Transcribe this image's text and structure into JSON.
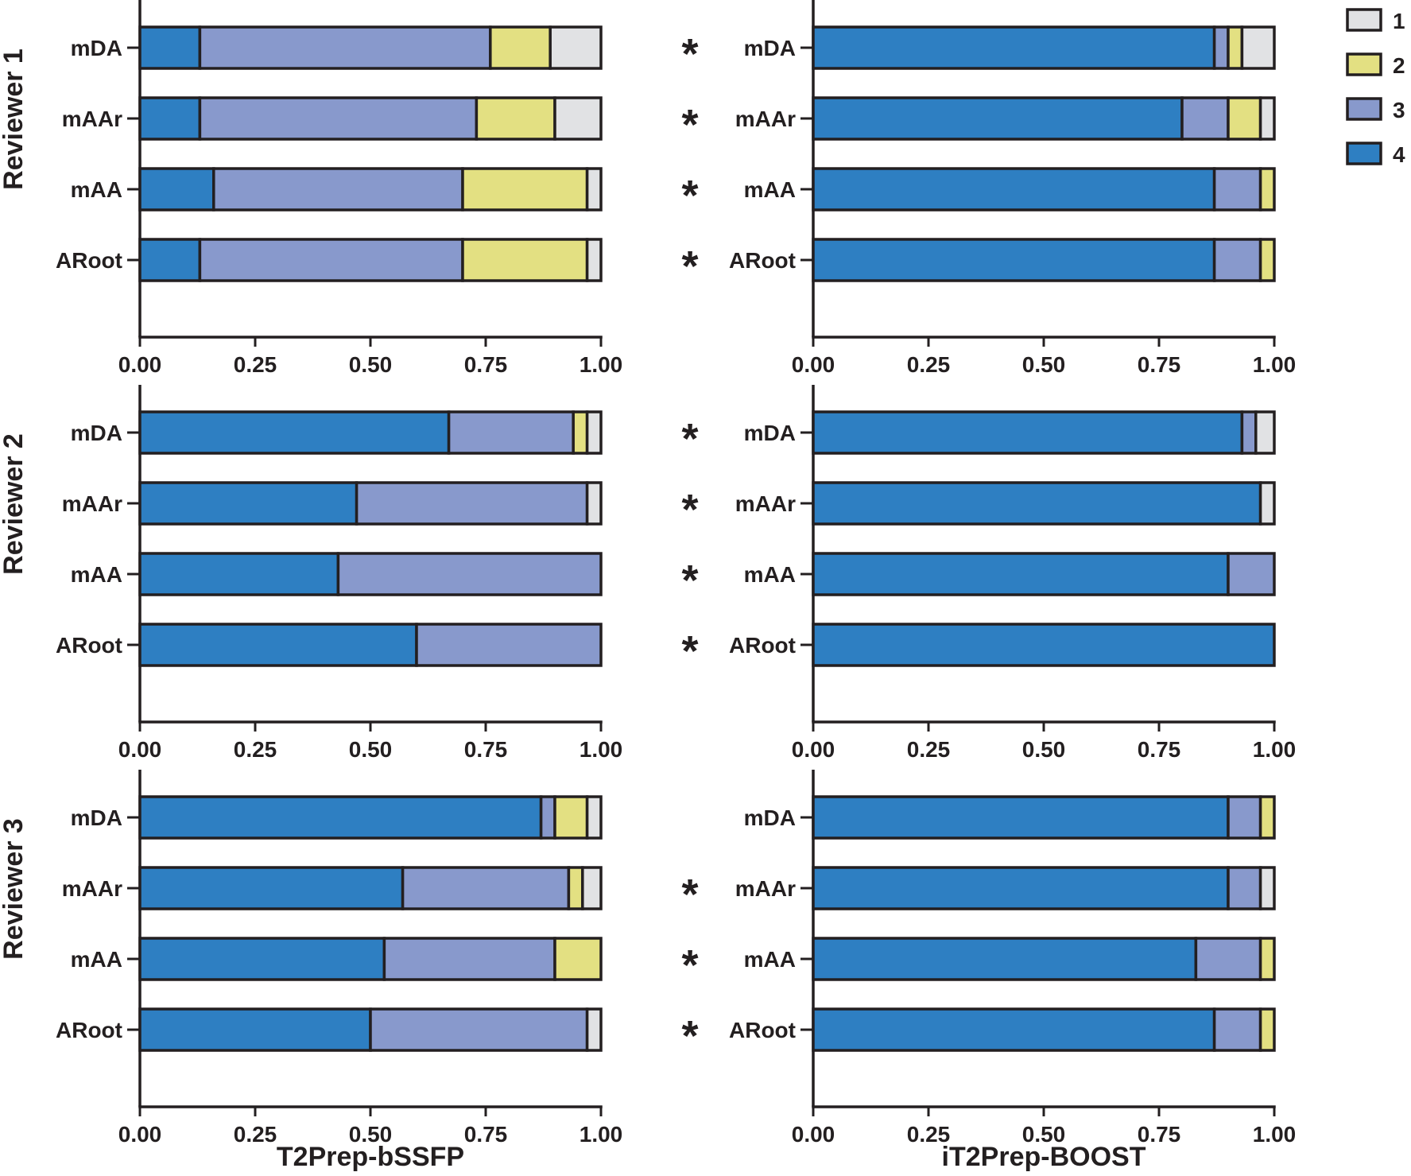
{
  "chart_data": {
    "type": "bar",
    "stacked": true,
    "orientation": "horizontal",
    "categories": [
      "mDA",
      "mAAr",
      "mAA",
      "ARoot"
    ],
    "score_levels": [
      "1",
      "2",
      "3",
      "4"
    ],
    "colors": {
      "1": "#e1e2e4",
      "2": "#e3e082",
      "3": "#8899cc",
      "4": "#2e7fc2"
    },
    "xlim": [
      0,
      1
    ],
    "xticks": [
      "0.00",
      "0.25",
      "0.50",
      "0.75",
      "1.00"
    ],
    "column_labels": [
      "T2Prep-bSSFP",
      "iT2Prep-BOOST"
    ],
    "row_labels": [
      "Reviewer 1",
      "Reviewer 2",
      "Reviewer 3"
    ],
    "significance_marker": "*",
    "legend": {
      "position": "top-right",
      "entries": [
        "1",
        "2",
        "3",
        "4"
      ]
    },
    "panels": [
      {
        "reviewer": "Reviewer 1",
        "method": "T2Prep-bSSFP",
        "bars": [
          {
            "category": "mDA",
            "fractions": {
              "4": 0.13,
              "3": 0.63,
              "2": 0.13,
              "1": 0.11
            },
            "significant": false
          },
          {
            "category": "mAAr",
            "fractions": {
              "4": 0.13,
              "3": 0.6,
              "2": 0.17,
              "1": 0.1
            },
            "significant": false
          },
          {
            "category": "mAA",
            "fractions": {
              "4": 0.16,
              "3": 0.54,
              "2": 0.27,
              "1": 0.03
            },
            "significant": false
          },
          {
            "category": "ARoot",
            "fractions": {
              "4": 0.13,
              "3": 0.57,
              "2": 0.27,
              "1": 0.03
            },
            "significant": false
          }
        ]
      },
      {
        "reviewer": "Reviewer 1",
        "method": "iT2Prep-BOOST",
        "bars": [
          {
            "category": "mDA",
            "fractions": {
              "4": 0.87,
              "3": 0.03,
              "2": 0.03,
              "1": 0.07
            },
            "significant": true
          },
          {
            "category": "mAAr",
            "fractions": {
              "4": 0.8,
              "3": 0.1,
              "2": 0.07,
              "1": 0.03
            },
            "significant": true
          },
          {
            "category": "mAA",
            "fractions": {
              "4": 0.87,
              "3": 0.1,
              "2": 0.03,
              "1": 0.0
            },
            "significant": true
          },
          {
            "category": "ARoot",
            "fractions": {
              "4": 0.87,
              "3": 0.1,
              "2": 0.03,
              "1": 0.0
            },
            "significant": true
          }
        ]
      },
      {
        "reviewer": "Reviewer 2",
        "method": "T2Prep-bSSFP",
        "bars": [
          {
            "category": "mDA",
            "fractions": {
              "4": 0.67,
              "3": 0.27,
              "2": 0.03,
              "1": 0.03
            },
            "significant": false
          },
          {
            "category": "mAAr",
            "fractions": {
              "4": 0.47,
              "3": 0.5,
              "2": 0.0,
              "1": 0.03
            },
            "significant": false
          },
          {
            "category": "mAA",
            "fractions": {
              "4": 0.43,
              "3": 0.57,
              "2": 0.0,
              "1": 0.0
            },
            "significant": false
          },
          {
            "category": "ARoot",
            "fractions": {
              "4": 0.6,
              "3": 0.4,
              "2": 0.0,
              "1": 0.0
            },
            "significant": false
          }
        ]
      },
      {
        "reviewer": "Reviewer 2",
        "method": "iT2Prep-BOOST",
        "bars": [
          {
            "category": "mDA",
            "fractions": {
              "4": 0.93,
              "3": 0.03,
              "2": 0.0,
              "1": 0.04
            },
            "significant": true
          },
          {
            "category": "mAAr",
            "fractions": {
              "4": 0.97,
              "3": 0.0,
              "2": 0.0,
              "1": 0.03
            },
            "significant": true
          },
          {
            "category": "mAA",
            "fractions": {
              "4": 0.9,
              "3": 0.1,
              "2": 0.0,
              "1": 0.0
            },
            "significant": true
          },
          {
            "category": "ARoot",
            "fractions": {
              "4": 1.0,
              "3": 0.0,
              "2": 0.0,
              "1": 0.0
            },
            "significant": true
          }
        ]
      },
      {
        "reviewer": "Reviewer 3",
        "method": "T2Prep-bSSFP",
        "bars": [
          {
            "category": "mDA",
            "fractions": {
              "4": 0.87,
              "3": 0.03,
              "2": 0.07,
              "1": 0.03
            },
            "significant": false
          },
          {
            "category": "mAAr",
            "fractions": {
              "4": 0.57,
              "3": 0.36,
              "2": 0.03,
              "1": 0.04
            },
            "significant": false
          },
          {
            "category": "mAA",
            "fractions": {
              "4": 0.53,
              "3": 0.37,
              "2": 0.1,
              "1": 0.0
            },
            "significant": false
          },
          {
            "category": "ARoot",
            "fractions": {
              "4": 0.5,
              "3": 0.47,
              "2": 0.0,
              "1": 0.03
            },
            "significant": false
          }
        ]
      },
      {
        "reviewer": "Reviewer 3",
        "method": "iT2Prep-BOOST",
        "bars": [
          {
            "category": "mDA",
            "fractions": {
              "4": 0.9,
              "3": 0.07,
              "2": 0.03,
              "1": 0.0
            },
            "significant": false
          },
          {
            "category": "mAAr",
            "fractions": {
              "4": 0.9,
              "3": 0.07,
              "2": 0.0,
              "1": 0.03
            },
            "significant": true
          },
          {
            "category": "mAA",
            "fractions": {
              "4": 0.83,
              "3": 0.14,
              "2": 0.03,
              "1": 0.0
            },
            "significant": true
          },
          {
            "category": "ARoot",
            "fractions": {
              "4": 0.87,
              "3": 0.1,
              "2": 0.03,
              "1": 0.0
            },
            "significant": true
          }
        ]
      }
    ]
  }
}
